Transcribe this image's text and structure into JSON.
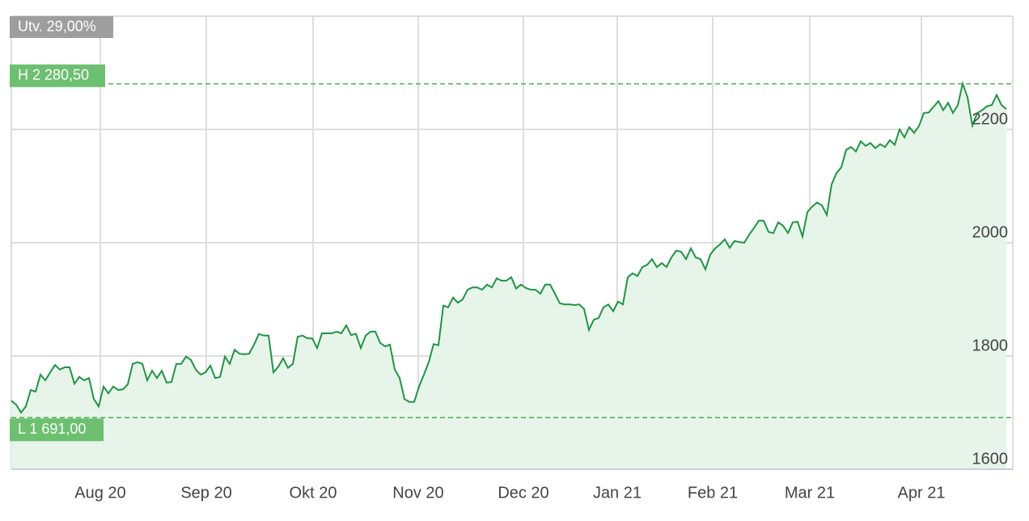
{
  "chart_data": {
    "type": "area",
    "annotation": "Utv. 29,00%",
    "high": {
      "value": 2280.5,
      "label": "H 2 280,50"
    },
    "low": {
      "value": 1691,
      "label": "L 1 691,00"
    },
    "color": "#1e9641",
    "fill": "#e7f4ea",
    "values": [
      1721,
      1714,
      1700,
      1711,
      1740,
      1737,
      1767,
      1757,
      1771,
      1784,
      1776,
      1780,
      1780,
      1751,
      1763,
      1757,
      1761,
      1724,
      1711,
      1746,
      1734,
      1746,
      1740,
      1741,
      1750,
      1786,
      1789,
      1786,
      1757,
      1774,
      1761,
      1774,
      1753,
      1754,
      1786,
      1786,
      1799,
      1793,
      1776,
      1767,
      1771,
      1783,
      1761,
      1763,
      1799,
      1786,
      1811,
      1804,
      1803,
      1804,
      1820,
      1839,
      1836,
      1836,
      1771,
      1781,
      1796,
      1779,
      1786,
      1834,
      1836,
      1831,
      1831,
      1814,
      1840,
      1840,
      1840,
      1843,
      1840,
      1854,
      1837,
      1839,
      1814,
      1836,
      1843,
      1843,
      1823,
      1817,
      1820,
      1776,
      1761,
      1724,
      1719,
      1719,
      1746,
      1767,
      1789,
      1821,
      1819,
      1889,
      1886,
      1903,
      1894,
      1900,
      1917,
      1921,
      1921,
      1917,
      1926,
      1921,
      1937,
      1933,
      1933,
      1939,
      1919,
      1926,
      1920,
      1917,
      1917,
      1910,
      1926,
      1926,
      1910,
      1893,
      1891,
      1891,
      1890,
      1891,
      1883,
      1846,
      1864,
      1867,
      1886,
      1891,
      1879,
      1896,
      1891,
      1939,
      1946,
      1941,
      1957,
      1961,
      1971,
      1957,
      1964,
      1957,
      1974,
      1986,
      1984,
      1971,
      1990,
      1974,
      1971,
      1953,
      1979,
      1990,
      1997,
      2006,
      1991,
      2003,
      2001,
      2000,
      2014,
      2026,
      2039,
      2039,
      2019,
      2017,
      2036,
      2030,
      2017,
      2036,
      2037,
      2011,
      2054,
      2064,
      2071,
      2066,
      2049,
      2103,
      2123,
      2133,
      2164,
      2169,
      2161,
      2179,
      2171,
      2176,
      2167,
      2174,
      2169,
      2181,
      2173,
      2200,
      2186,
      2204,
      2194,
      2206,
      2229,
      2230,
      2240,
      2250,
      2234,
      2247,
      2229,
      2243,
      2281,
      2257,
      2207,
      2229,
      2234,
      2241,
      2243,
      2261,
      2243,
      2236
    ],
    "xlim": [
      0,
      206
    ],
    "xticks": [
      {
        "value": 18.33,
        "label": "Aug 20"
      },
      {
        "value": 40.17,
        "label": "Sep 20"
      },
      {
        "value": 62.17,
        "label": "Okt 20"
      },
      {
        "value": 83.83,
        "label": "Nov 20"
      },
      {
        "value": 105.5,
        "label": "Dec 20"
      },
      {
        "value": 124.83,
        "label": "Jan 21"
      },
      {
        "value": 144.5,
        "label": "Feb 21"
      },
      {
        "value": 164.5,
        "label": "Mar 21"
      },
      {
        "value": 187.5,
        "label": "Apr 21"
      }
    ],
    "ylim": [
      1600,
      2400
    ],
    "yticks": [
      1600,
      1800,
      2000,
      2200
    ],
    "grid": true
  }
}
